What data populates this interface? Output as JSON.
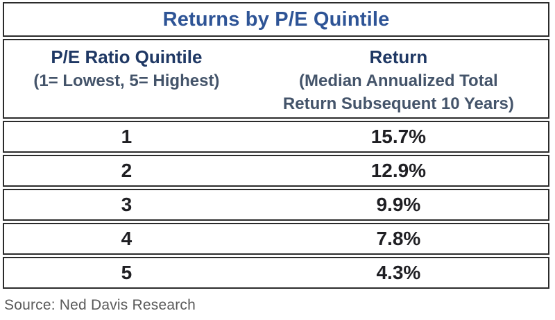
{
  "title": "Returns by P/E Quintile",
  "columns": [
    {
      "label": "P/E Ratio Quintile",
      "sublines": [
        "(1= Lowest, 5= Highest)"
      ]
    },
    {
      "label": "Return",
      "sublines": [
        "(Median Annualized Total",
        "Return Subsequent 10 Years)"
      ]
    }
  ],
  "rows": [
    {
      "quintile": "1",
      "return": "15.7%"
    },
    {
      "quintile": "2",
      "return": "12.9%"
    },
    {
      "quintile": "3",
      "return": "9.9%"
    },
    {
      "quintile": "4",
      "return": "7.8%"
    },
    {
      "quintile": "5",
      "return": "4.3%"
    }
  ],
  "source": "Source: Ned Davis Research",
  "colors": {
    "title_blue": "#2e5496",
    "header_navy": "#1f3864",
    "subheader_slate": "#44546a",
    "data_text": "#1f1f23",
    "border": "#2b2b2b",
    "source_gray": "#595959",
    "background": "#ffffff"
  },
  "chart_data": {
    "type": "table",
    "title": "Returns by P/E Quintile",
    "columns": [
      "P/E Ratio Quintile (1= Lowest, 5= Highest)",
      "Return (Median Annualized Total Return Subsequent 10 Years)"
    ],
    "rows": [
      [
        "1",
        "15.7%"
      ],
      [
        "2",
        "12.9%"
      ],
      [
        "3",
        "9.9%"
      ],
      [
        "4",
        "7.8%"
      ],
      [
        "5",
        "4.3%"
      ]
    ],
    "source": "Source: Ned Davis Research"
  }
}
